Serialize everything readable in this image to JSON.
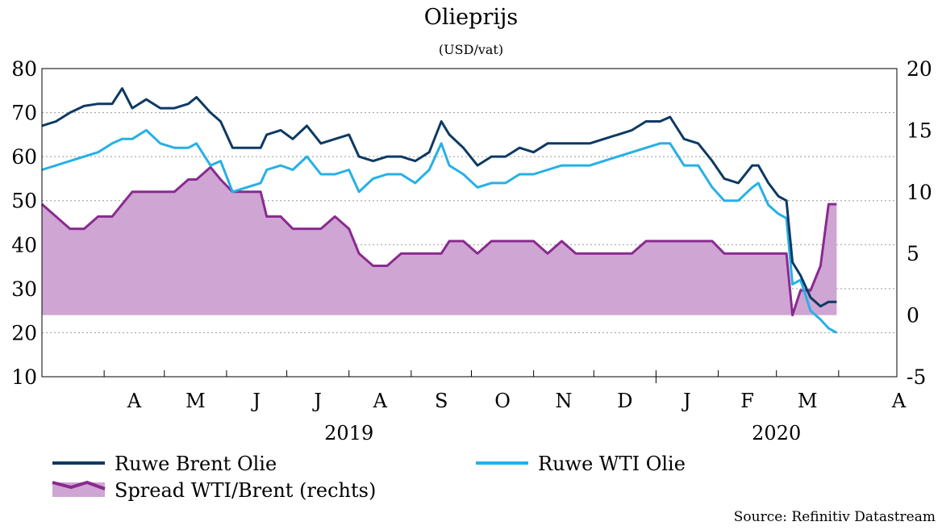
{
  "chart_data": {
    "type": "line",
    "title": "Olieprijs",
    "subtitle": "(USD/vat)",
    "source": "Source: Refinitiv Datastream",
    "y_left": {
      "ylim": [
        10,
        80
      ],
      "ticks": [
        "80",
        "70",
        "60",
        "50",
        "40",
        "30",
        "20",
        "10"
      ]
    },
    "y_right": {
      "ylim": [
        -5,
        20
      ],
      "ticks": [
        "20",
        "15",
        "10",
        "5",
        "0",
        "-5"
      ]
    },
    "x_range": [
      "2019-03-01",
      "2020-04-30"
    ],
    "grid": true,
    "month_labels": [
      "A",
      "M",
      "J",
      "J",
      "A",
      "S",
      "O",
      "N",
      "D",
      "J",
      "F",
      "M",
      "A"
    ],
    "year_labels": [
      "2019",
      "2020"
    ],
    "colors": {
      "brent": "#0d3a63",
      "wti": "#26b0e6",
      "spread_line": "#8a2a8f",
      "spread_fill": "#cfa5d3"
    },
    "legend": {
      "brent": "Ruwe Brent Olie",
      "wti": "Ruwe WTI Olie",
      "spread": "Spread WTI/Brent (rechts)"
    },
    "series": [
      {
        "name": "Ruwe Brent Olie",
        "axis": "left",
        "points": [
          [
            "2019-03-01",
            67
          ],
          [
            "2019-03-08",
            68
          ],
          [
            "2019-03-15",
            70
          ],
          [
            "2019-03-22",
            71.5
          ],
          [
            "2019-03-29",
            72
          ],
          [
            "2019-04-05",
            72
          ],
          [
            "2019-04-10",
            75.5
          ],
          [
            "2019-04-15",
            71
          ],
          [
            "2019-04-22",
            73
          ],
          [
            "2019-04-29",
            71
          ],
          [
            "2019-05-06",
            71
          ],
          [
            "2019-05-13",
            72
          ],
          [
            "2019-05-17",
            73.5
          ],
          [
            "2019-05-24",
            70
          ],
          [
            "2019-05-29",
            68
          ],
          [
            "2019-06-04",
            62
          ],
          [
            "2019-06-11",
            62
          ],
          [
            "2019-06-18",
            62
          ],
          [
            "2019-06-21",
            65
          ],
          [
            "2019-06-28",
            66
          ],
          [
            "2019-07-04",
            64
          ],
          [
            "2019-07-11",
            67
          ],
          [
            "2019-07-18",
            63
          ],
          [
            "2019-07-25",
            64
          ],
          [
            "2019-08-01",
            65
          ],
          [
            "2019-08-06",
            60
          ],
          [
            "2019-08-13",
            59
          ],
          [
            "2019-08-20",
            60
          ],
          [
            "2019-08-27",
            60
          ],
          [
            "2019-09-03",
            59
          ],
          [
            "2019-09-10",
            61
          ],
          [
            "2019-09-16",
            68
          ],
          [
            "2019-09-20",
            65
          ],
          [
            "2019-09-27",
            62
          ],
          [
            "2019-10-04",
            58
          ],
          [
            "2019-10-11",
            60
          ],
          [
            "2019-10-18",
            60
          ],
          [
            "2019-10-25",
            62
          ],
          [
            "2019-11-01",
            61
          ],
          [
            "2019-11-08",
            63
          ],
          [
            "2019-11-15",
            63
          ],
          [
            "2019-11-22",
            63
          ],
          [
            "2019-11-29",
            63
          ],
          [
            "2019-12-06",
            64
          ],
          [
            "2019-12-13",
            65
          ],
          [
            "2019-12-20",
            66
          ],
          [
            "2019-12-27",
            68
          ],
          [
            "2020-01-03",
            68
          ],
          [
            "2020-01-08",
            69
          ],
          [
            "2020-01-15",
            64
          ],
          [
            "2020-01-22",
            63
          ],
          [
            "2020-01-29",
            59
          ],
          [
            "2020-02-04",
            55
          ],
          [
            "2020-02-11",
            54
          ],
          [
            "2020-02-18",
            58
          ],
          [
            "2020-02-21",
            58
          ],
          [
            "2020-02-26",
            54
          ],
          [
            "2020-03-02",
            51
          ],
          [
            "2020-03-06",
            50
          ],
          [
            "2020-03-09",
            36
          ],
          [
            "2020-03-13",
            33
          ],
          [
            "2020-03-18",
            28
          ],
          [
            "2020-03-23",
            26
          ],
          [
            "2020-03-27",
            27
          ],
          [
            "2020-03-31",
            27
          ]
        ]
      },
      {
        "name": "Ruwe WTI Olie",
        "axis": "left",
        "points": [
          [
            "2019-03-01",
            57
          ],
          [
            "2019-03-08",
            58
          ],
          [
            "2019-03-15",
            59
          ],
          [
            "2019-03-22",
            60
          ],
          [
            "2019-03-29",
            61
          ],
          [
            "2019-04-05",
            63
          ],
          [
            "2019-04-10",
            64
          ],
          [
            "2019-04-15",
            64
          ],
          [
            "2019-04-22",
            66
          ],
          [
            "2019-04-29",
            63
          ],
          [
            "2019-05-06",
            62
          ],
          [
            "2019-05-13",
            62
          ],
          [
            "2019-05-17",
            63
          ],
          [
            "2019-05-24",
            58
          ],
          [
            "2019-05-29",
            59
          ],
          [
            "2019-06-04",
            52
          ],
          [
            "2019-06-11",
            53
          ],
          [
            "2019-06-18",
            54
          ],
          [
            "2019-06-21",
            57
          ],
          [
            "2019-06-28",
            58
          ],
          [
            "2019-07-04",
            57
          ],
          [
            "2019-07-11",
            60
          ],
          [
            "2019-07-18",
            56
          ],
          [
            "2019-07-25",
            56
          ],
          [
            "2019-08-01",
            57
          ],
          [
            "2019-08-06",
            52
          ],
          [
            "2019-08-13",
            55
          ],
          [
            "2019-08-20",
            56
          ],
          [
            "2019-08-27",
            56
          ],
          [
            "2019-09-03",
            54
          ],
          [
            "2019-09-10",
            57
          ],
          [
            "2019-09-16",
            63
          ],
          [
            "2019-09-20",
            58
          ],
          [
            "2019-09-27",
            56
          ],
          [
            "2019-10-04",
            53
          ],
          [
            "2019-10-11",
            54
          ],
          [
            "2019-10-18",
            54
          ],
          [
            "2019-10-25",
            56
          ],
          [
            "2019-11-01",
            56
          ],
          [
            "2019-11-08",
            57
          ],
          [
            "2019-11-15",
            58
          ],
          [
            "2019-11-22",
            58
          ],
          [
            "2019-11-29",
            58
          ],
          [
            "2019-12-06",
            59
          ],
          [
            "2019-12-13",
            60
          ],
          [
            "2019-12-20",
            61
          ],
          [
            "2019-12-27",
            62
          ],
          [
            "2020-01-03",
            63
          ],
          [
            "2020-01-08",
            63
          ],
          [
            "2020-01-15",
            58
          ],
          [
            "2020-01-22",
            58
          ],
          [
            "2020-01-29",
            53
          ],
          [
            "2020-02-04",
            50
          ],
          [
            "2020-02-11",
            50
          ],
          [
            "2020-02-18",
            53
          ],
          [
            "2020-02-21",
            54
          ],
          [
            "2020-02-26",
            49
          ],
          [
            "2020-03-02",
            47
          ],
          [
            "2020-03-06",
            46
          ],
          [
            "2020-03-09",
            31
          ],
          [
            "2020-03-13",
            32
          ],
          [
            "2020-03-18",
            25
          ],
          [
            "2020-03-23",
            23
          ],
          [
            "2020-03-27",
            21
          ],
          [
            "2020-03-31",
            20
          ]
        ]
      },
      {
        "name": "Spread WTI/Brent (rechts)",
        "axis": "right",
        "points": [
          [
            "2019-03-01",
            9
          ],
          [
            "2019-03-08",
            8
          ],
          [
            "2019-03-15",
            7
          ],
          [
            "2019-03-22",
            7
          ],
          [
            "2019-03-29",
            8
          ],
          [
            "2019-04-05",
            8
          ],
          [
            "2019-04-10",
            9
          ],
          [
            "2019-04-15",
            10
          ],
          [
            "2019-04-22",
            10
          ],
          [
            "2019-04-29",
            10
          ],
          [
            "2019-05-06",
            10
          ],
          [
            "2019-05-13",
            11
          ],
          [
            "2019-05-17",
            11
          ],
          [
            "2019-05-24",
            12
          ],
          [
            "2019-05-29",
            11
          ],
          [
            "2019-06-04",
            10
          ],
          [
            "2019-06-11",
            10
          ],
          [
            "2019-06-18",
            10
          ],
          [
            "2019-06-21",
            8
          ],
          [
            "2019-06-28",
            8
          ],
          [
            "2019-07-04",
            7
          ],
          [
            "2019-07-11",
            7
          ],
          [
            "2019-07-18",
            7
          ],
          [
            "2019-07-25",
            8
          ],
          [
            "2019-08-01",
            7
          ],
          [
            "2019-08-06",
            5
          ],
          [
            "2019-08-13",
            4
          ],
          [
            "2019-08-20",
            4
          ],
          [
            "2019-08-27",
            5
          ],
          [
            "2019-09-03",
            5
          ],
          [
            "2019-09-10",
            5
          ],
          [
            "2019-09-16",
            5
          ],
          [
            "2019-09-20",
            6
          ],
          [
            "2019-09-27",
            6
          ],
          [
            "2019-10-04",
            5
          ],
          [
            "2019-10-11",
            6
          ],
          [
            "2019-10-18",
            6
          ],
          [
            "2019-10-25",
            6
          ],
          [
            "2019-11-01",
            6
          ],
          [
            "2019-11-08",
            5
          ],
          [
            "2019-11-15",
            6
          ],
          [
            "2019-11-22",
            5
          ],
          [
            "2019-11-29",
            5
          ],
          [
            "2019-12-06",
            5
          ],
          [
            "2019-12-13",
            5
          ],
          [
            "2019-12-20",
            5
          ],
          [
            "2019-12-27",
            6
          ],
          [
            "2020-01-03",
            6
          ],
          [
            "2020-01-08",
            6
          ],
          [
            "2020-01-15",
            6
          ],
          [
            "2020-01-22",
            6
          ],
          [
            "2020-01-29",
            6
          ],
          [
            "2020-02-04",
            5
          ],
          [
            "2020-02-11",
            5
          ],
          [
            "2020-02-18",
            5
          ],
          [
            "2020-02-21",
            5
          ],
          [
            "2020-02-26",
            5
          ],
          [
            "2020-03-02",
            5
          ],
          [
            "2020-03-06",
            5
          ],
          [
            "2020-03-09",
            0
          ],
          [
            "2020-03-13",
            2
          ],
          [
            "2020-03-18",
            2
          ],
          [
            "2020-03-23",
            4
          ],
          [
            "2020-03-27",
            9
          ],
          [
            "2020-03-31",
            9
          ]
        ]
      }
    ]
  }
}
